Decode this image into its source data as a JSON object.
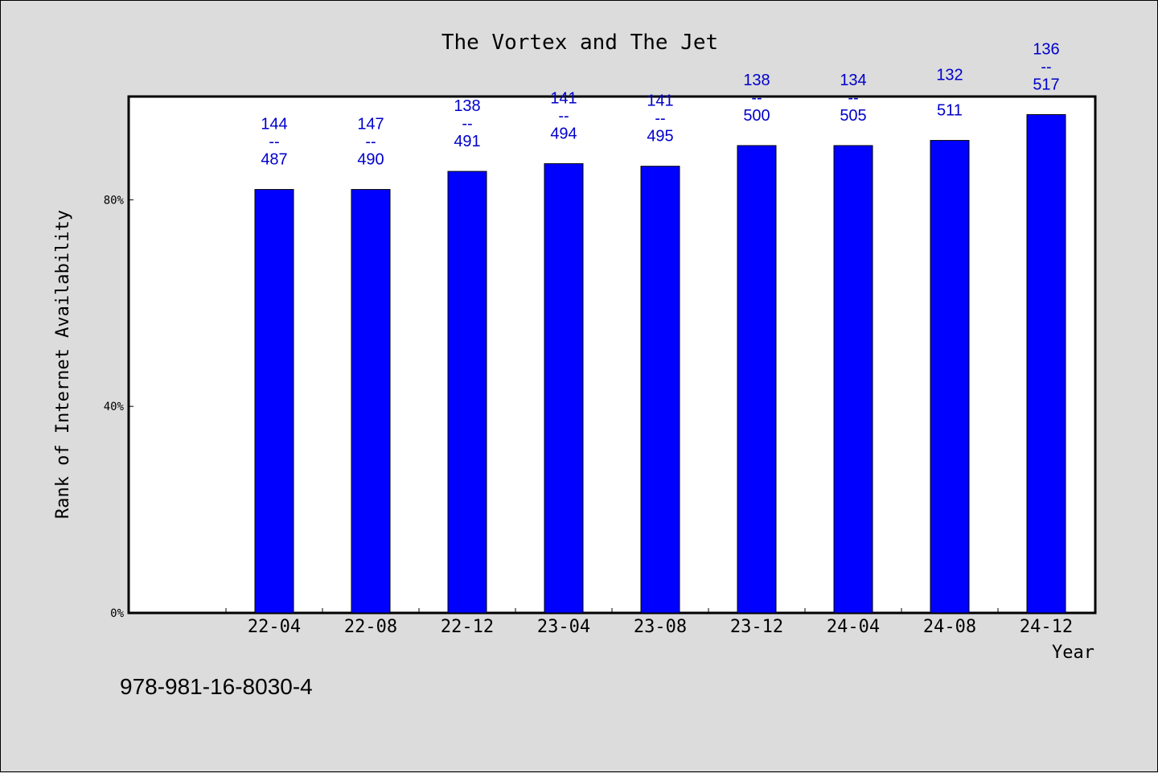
{
  "chart_data": {
    "type": "bar",
    "title": "The Vortex and The Jet",
    "xlabel": "Year",
    "ylabel": "Rank of Internet Availability",
    "categories": [
      "22-04",
      "22-08",
      "22-12",
      "23-04",
      "23-08",
      "23-12",
      "24-04",
      "24-08",
      "24-12"
    ],
    "series": [
      {
        "values": [
          82,
          82,
          85.5,
          87,
          86.5,
          90.5,
          90.5,
          91.5,
          96.5
        ],
        "color": "#0000ff"
      }
    ],
    "data_labels": [
      [
        "144",
        "--",
        "487"
      ],
      [
        "147",
        "--",
        "490"
      ],
      [
        "138",
        "--",
        "491"
      ],
      [
        "141",
        "--",
        "494"
      ],
      [
        "141",
        "--",
        "495"
      ],
      [
        "138",
        "--",
        "500"
      ],
      [
        "134",
        "--",
        "505"
      ],
      [
        "132",
        "",
        "511"
      ],
      [
        "136",
        "--",
        "517"
      ]
    ],
    "ylim": [
      0,
      100
    ],
    "yticks": [
      0,
      40,
      80
    ],
    "ytick_labels": [
      "0%",
      "40%",
      "80%"
    ],
    "grid": false
  },
  "footer_text": "978-981-16-8030-4",
  "colors": {
    "background": "#dcdcdc",
    "plot_background": "#ffffff",
    "bar": "#0000ff",
    "data_label": "#0000cc"
  }
}
